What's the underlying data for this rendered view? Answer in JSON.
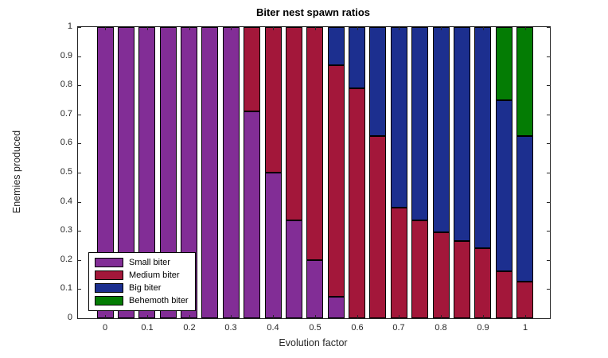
{
  "figure": {
    "background": "#ffffff"
  },
  "colors": {
    "axis": "#262626",
    "tick_label": "#262626",
    "title": "#000000",
    "bar_edge": "#000000",
    "legend_border": "#000000",
    "legend_background": "#ffffff"
  },
  "chart_data": {
    "type": "bar",
    "stacked": true,
    "title": "Biter nest spawn ratios",
    "xlabel": "Evolution factor",
    "ylabel": "Enemies produced",
    "xlim": [
      -0.065,
      1.065
    ],
    "ylim": [
      0,
      1
    ],
    "grid": false,
    "legend_position": "southwest",
    "x_tick_labels": [
      "0",
      "0.1",
      "0.2",
      "0.3",
      "0.4",
      "0.5",
      "0.6",
      "0.7",
      "0.8",
      "0.9",
      "1"
    ],
    "y_tick_labels": [
      "0",
      "0.1",
      "0.2",
      "0.3",
      "0.4",
      "0.5",
      "0.6",
      "0.7",
      "0.8",
      "0.9",
      "1"
    ],
    "x": [
      0,
      0.05,
      0.1,
      0.15,
      0.2,
      0.25,
      0.3,
      0.35,
      0.4,
      0.45,
      0.5,
      0.55,
      0.6,
      0.65,
      0.7,
      0.75,
      0.8,
      0.85,
      0.9,
      0.95,
      1
    ],
    "series": [
      {
        "name": "Small biter",
        "color": "#822D96",
        "values": [
          1,
          1,
          1,
          1,
          1,
          1,
          1,
          0.71,
          0.5,
          0.335,
          0.2,
          0.075,
          0,
          0,
          0,
          0,
          0,
          0,
          0,
          0,
          0
        ]
      },
      {
        "name": "Medium biter",
        "color": "#A3173A",
        "values": [
          0,
          0,
          0,
          0,
          0,
          0,
          0,
          0.29,
          0.5,
          0.665,
          0.8,
          0.795,
          0.79,
          0.625,
          0.38,
          0.335,
          0.295,
          0.265,
          0.24,
          0.16,
          0.125
        ]
      },
      {
        "name": "Big biter",
        "color": "#1C2F8F",
        "values": [
          0,
          0,
          0,
          0,
          0,
          0,
          0,
          0,
          0,
          0,
          0,
          0.13,
          0.21,
          0.375,
          0.62,
          0.665,
          0.705,
          0.735,
          0.76,
          0.59,
          0.5
        ]
      },
      {
        "name": "Behemoth biter",
        "color": "#047C04",
        "values": [
          0,
          0,
          0,
          0,
          0,
          0,
          0,
          0,
          0,
          0,
          0,
          0,
          0,
          0,
          0,
          0,
          0,
          0,
          0,
          0.25,
          0.375
        ]
      }
    ]
  }
}
